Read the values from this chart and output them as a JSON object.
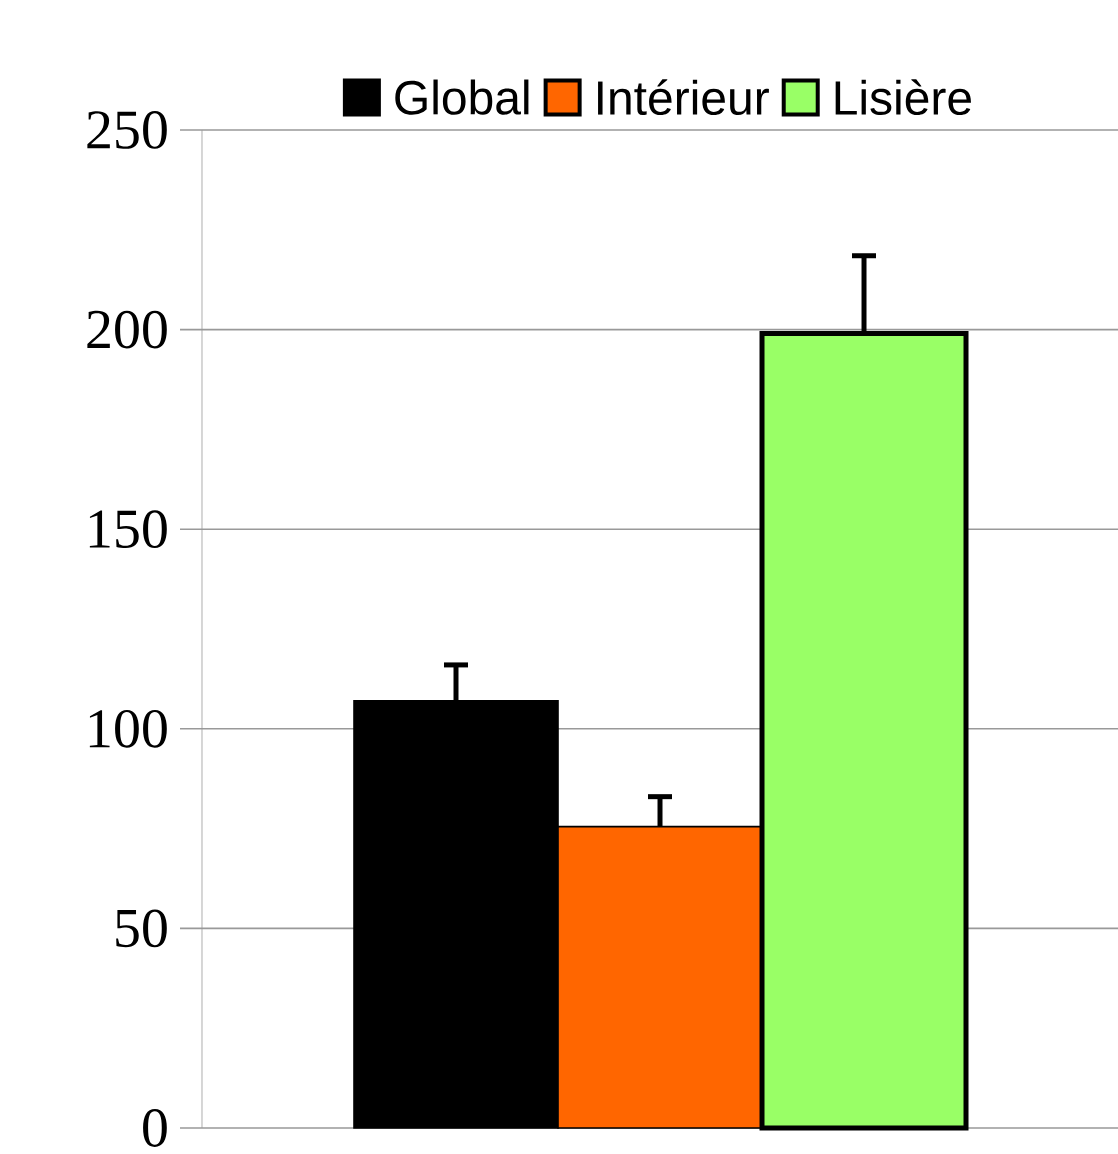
{
  "chart_data": {
    "type": "bar",
    "categories": [
      null
    ],
    "series": [
      {
        "name": "Global",
        "color": "#000000",
        "values": [
          107
        ],
        "errors": [
          9
        ]
      },
      {
        "name": "Intérieur",
        "color": "#ff6600",
        "values": [
          75.5
        ],
        "errors": [
          7.5
        ]
      },
      {
        "name": "Lisière",
        "color": "#99ff66",
        "values": [
          199
        ],
        "errors": [
          19.5
        ]
      }
    ],
    "ylim": [
      0,
      250
    ],
    "yticks": [
      0,
      50,
      100,
      150,
      200,
      250
    ],
    "grid": "y",
    "legend": "top"
  }
}
